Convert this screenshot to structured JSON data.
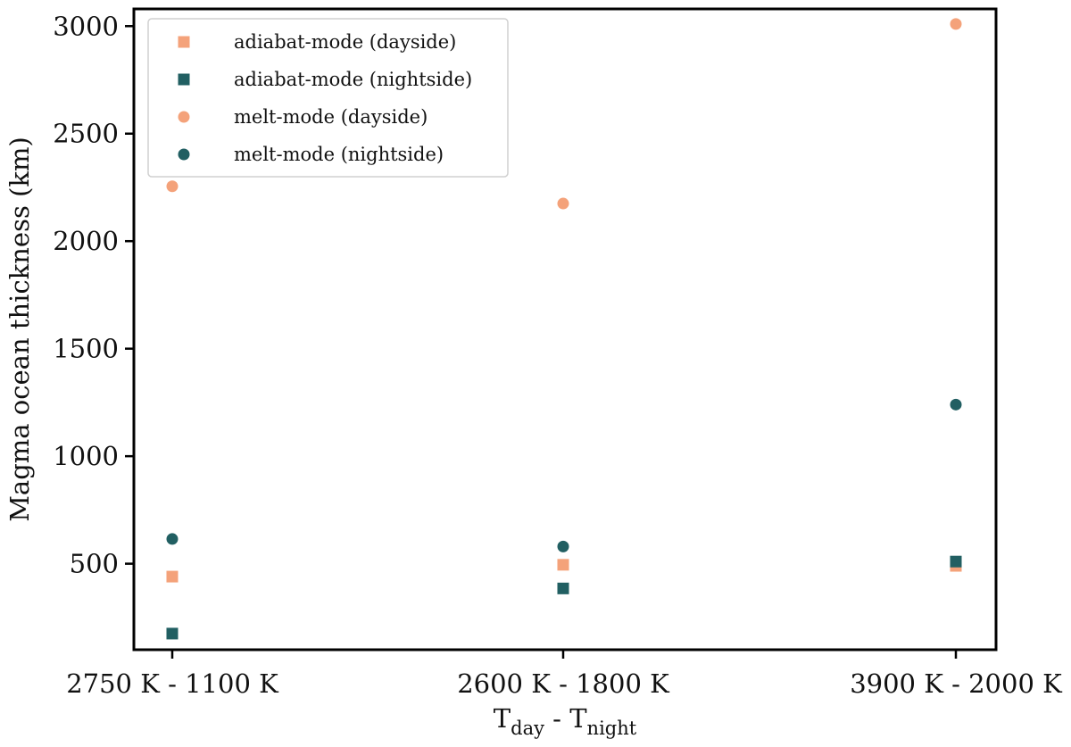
{
  "chart_data": {
    "type": "scatter",
    "categories": [
      "2750 K - 1100 K",
      "2600 K - 1800 K",
      "3900 K - 2000 K"
    ],
    "xlabel": {
      "main": "T",
      "sub1": "day",
      "sep": " - T",
      "sub2": "night"
    },
    "ylabel": "Magma ocean thickness (km)",
    "ylim": [
      100,
      3080
    ],
    "yticks": [
      500,
      1000,
      1500,
      2000,
      2500,
      3000
    ],
    "grid": false,
    "legend_position": "top-left",
    "series": [
      {
        "name": "adiabat-mode (dayside)",
        "marker": "square",
        "color": "#F4A27A",
        "values": [
          440,
          495,
          490
        ]
      },
      {
        "name": "adiabat-mode (nightside)",
        "marker": "square",
        "color": "#215F62",
        "values": [
          175,
          385,
          510
        ]
      },
      {
        "name": "melt-mode (dayside)",
        "marker": "circle",
        "color": "#F4A27A",
        "values": [
          2255,
          2175,
          3010
        ]
      },
      {
        "name": "melt-mode (nightside)",
        "marker": "circle",
        "color": "#215F62",
        "values": [
          615,
          580,
          1240
        ]
      }
    ]
  }
}
